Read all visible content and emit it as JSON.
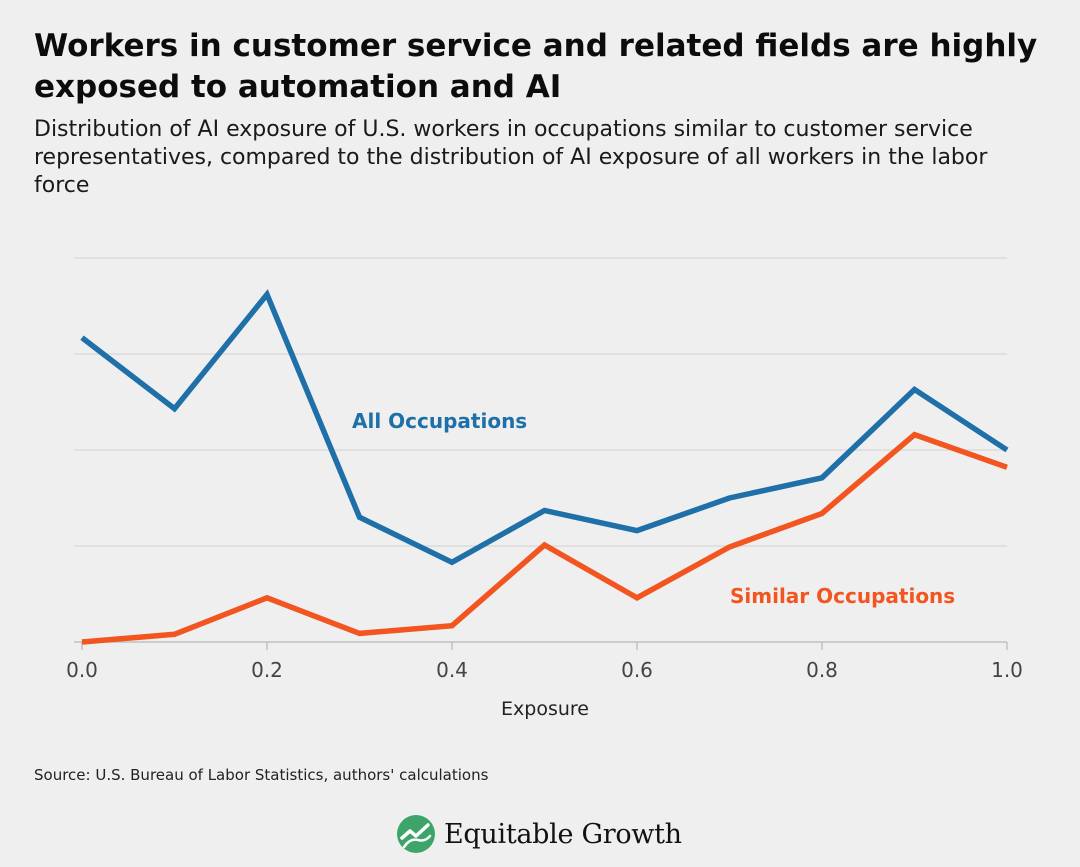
{
  "title": "Workers in customer service and related fields are highly exposed to automation and AI",
  "subtitle": "Distribution of AI exposure of U.S. workers in occupations similar to customer service representatives, compared to the distribution of AI exposure of all workers in the labor force",
  "source": "Source: U.S. Bureau of Labor Statistics, authors' calculations",
  "brand": {
    "name": "Equitable Growth",
    "icon": "growth-chart-leaf-icon"
  },
  "colors": {
    "all": "#1f6fa8",
    "similar": "#f2551f",
    "grid": "#d6d6d6",
    "axis": "#b8b8b8",
    "logo": "#3da56a"
  },
  "chart_data": {
    "type": "line",
    "title": "Workers in customer service and related fields are highly exposed to automation and AI",
    "xlabel": "Exposure",
    "ylabel": "",
    "x": [
      0.0,
      0.1,
      0.2,
      0.3,
      0.4,
      0.5,
      0.6,
      0.7,
      0.8,
      0.9,
      1.0
    ],
    "xticks": [
      "0.0",
      "0.2",
      "0.4",
      "0.6",
      "0.8",
      "1.0"
    ],
    "xlim": [
      0,
      1
    ],
    "ylim": [
      0,
      4
    ],
    "grid": true,
    "series": [
      {
        "name": "All Occupations",
        "color": "#1f6fa8",
        "values": [
          3.17,
          2.43,
          3.62,
          1.3,
          0.83,
          1.37,
          1.16,
          1.5,
          1.71,
          2.63,
          2.0
        ]
      },
      {
        "name": "Similar Occupations",
        "color": "#f2551f",
        "values": [
          0.0,
          0.08,
          0.46,
          0.09,
          0.17,
          1.01,
          0.46,
          0.99,
          1.34,
          2.16,
          1.82
        ]
      }
    ]
  }
}
